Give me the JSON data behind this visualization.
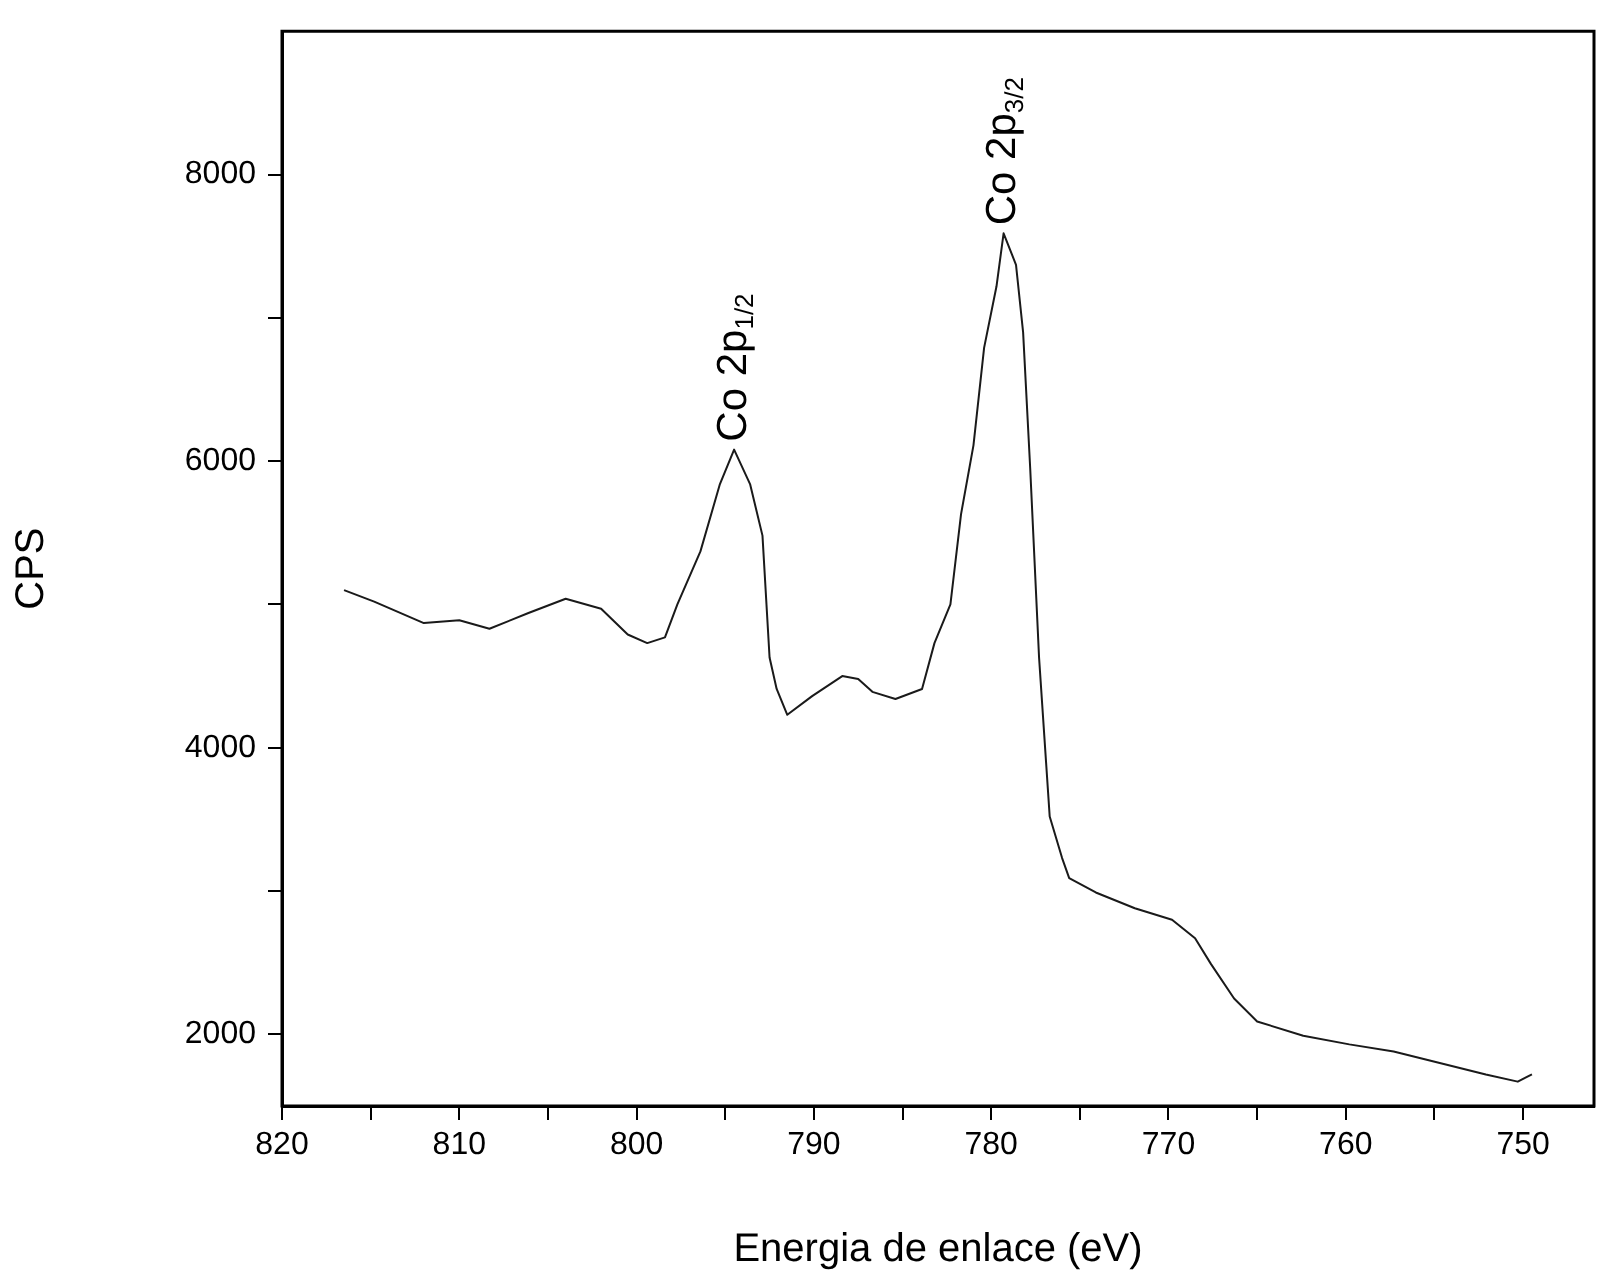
{
  "chart_data": {
    "type": "line",
    "xlabel": "Energia de enlace (eV)",
    "ylabel": "CPS",
    "xlim": [
      820,
      746
    ],
    "xticks": [
      820,
      {
        "value": 815,
        "label": null
      },
      810,
      {
        "value": 805,
        "label": null
      },
      800,
      {
        "value": 795,
        "label": null
      },
      790,
      {
        "value": 785,
        "label": null
      },
      780,
      {
        "value": 775,
        "label": null
      },
      770,
      {
        "value": 765,
        "label": null
      },
      760,
      {
        "value": 755,
        "label": null
      },
      750
    ],
    "ylim": [
      1500,
      9000
    ],
    "yticks": [
      2000,
      {
        "value": 3000,
        "label": null
      },
      4000,
      {
        "value": 5000,
        "label": null
      },
      6000,
      {
        "value": 7000,
        "label": null
      },
      8000
    ],
    "grid": false,
    "legend": false,
    "marker": "none",
    "line_style": "solid",
    "annotations": [
      {
        "text": "Co 2p$_{1/2}$",
        "x": 794.5,
        "y": 6080
      },
      {
        "text": "Co 2p$_{3/2}$",
        "x": 779.3,
        "y": 7590
      }
    ],
    "series": [
      {
        "color": "#1a1a1a",
        "x": [
          816.5,
          814.8,
          812.0,
          810.0,
          808.3,
          806.1,
          804.0,
          802.0,
          800.5,
          799.4,
          798.4,
          797.7,
          796.4,
          795.3,
          794.5,
          793.6,
          792.9,
          792.5,
          792.1,
          791.5,
          790.1,
          788.4,
          787.5,
          786.7,
          785.4,
          783.9,
          783.2,
          782.3,
          781.7,
          781.0,
          780.4,
          779.7,
          779.3,
          778.6,
          778.2,
          777.8,
          777.3,
          776.7,
          776.0,
          775.6,
          774.1,
          771.9,
          769.8,
          768.5,
          767.6,
          766.3,
          765.0,
          762.4,
          759.8,
          757.3,
          754.7,
          752.1,
          750.3,
          749.5
        ],
        "values": [
          5100,
          5020,
          4870,
          4890,
          4830,
          4940,
          5040,
          4970,
          4790,
          4730,
          4770,
          5000,
          5370,
          5840,
          6080,
          5840,
          5480,
          4630,
          4410,
          4230,
          4360,
          4500,
          4480,
          4390,
          4340,
          4410,
          4730,
          5000,
          5630,
          6110,
          6790,
          7220,
          7590,
          7370,
          6900,
          5950,
          4630,
          3520,
          3230,
          3090,
          2990,
          2880,
          2800,
          2670,
          2490,
          2250,
          2090,
          1990,
          1930,
          1880,
          1800,
          1720,
          1670,
          1720
        ]
      }
    ]
  }
}
